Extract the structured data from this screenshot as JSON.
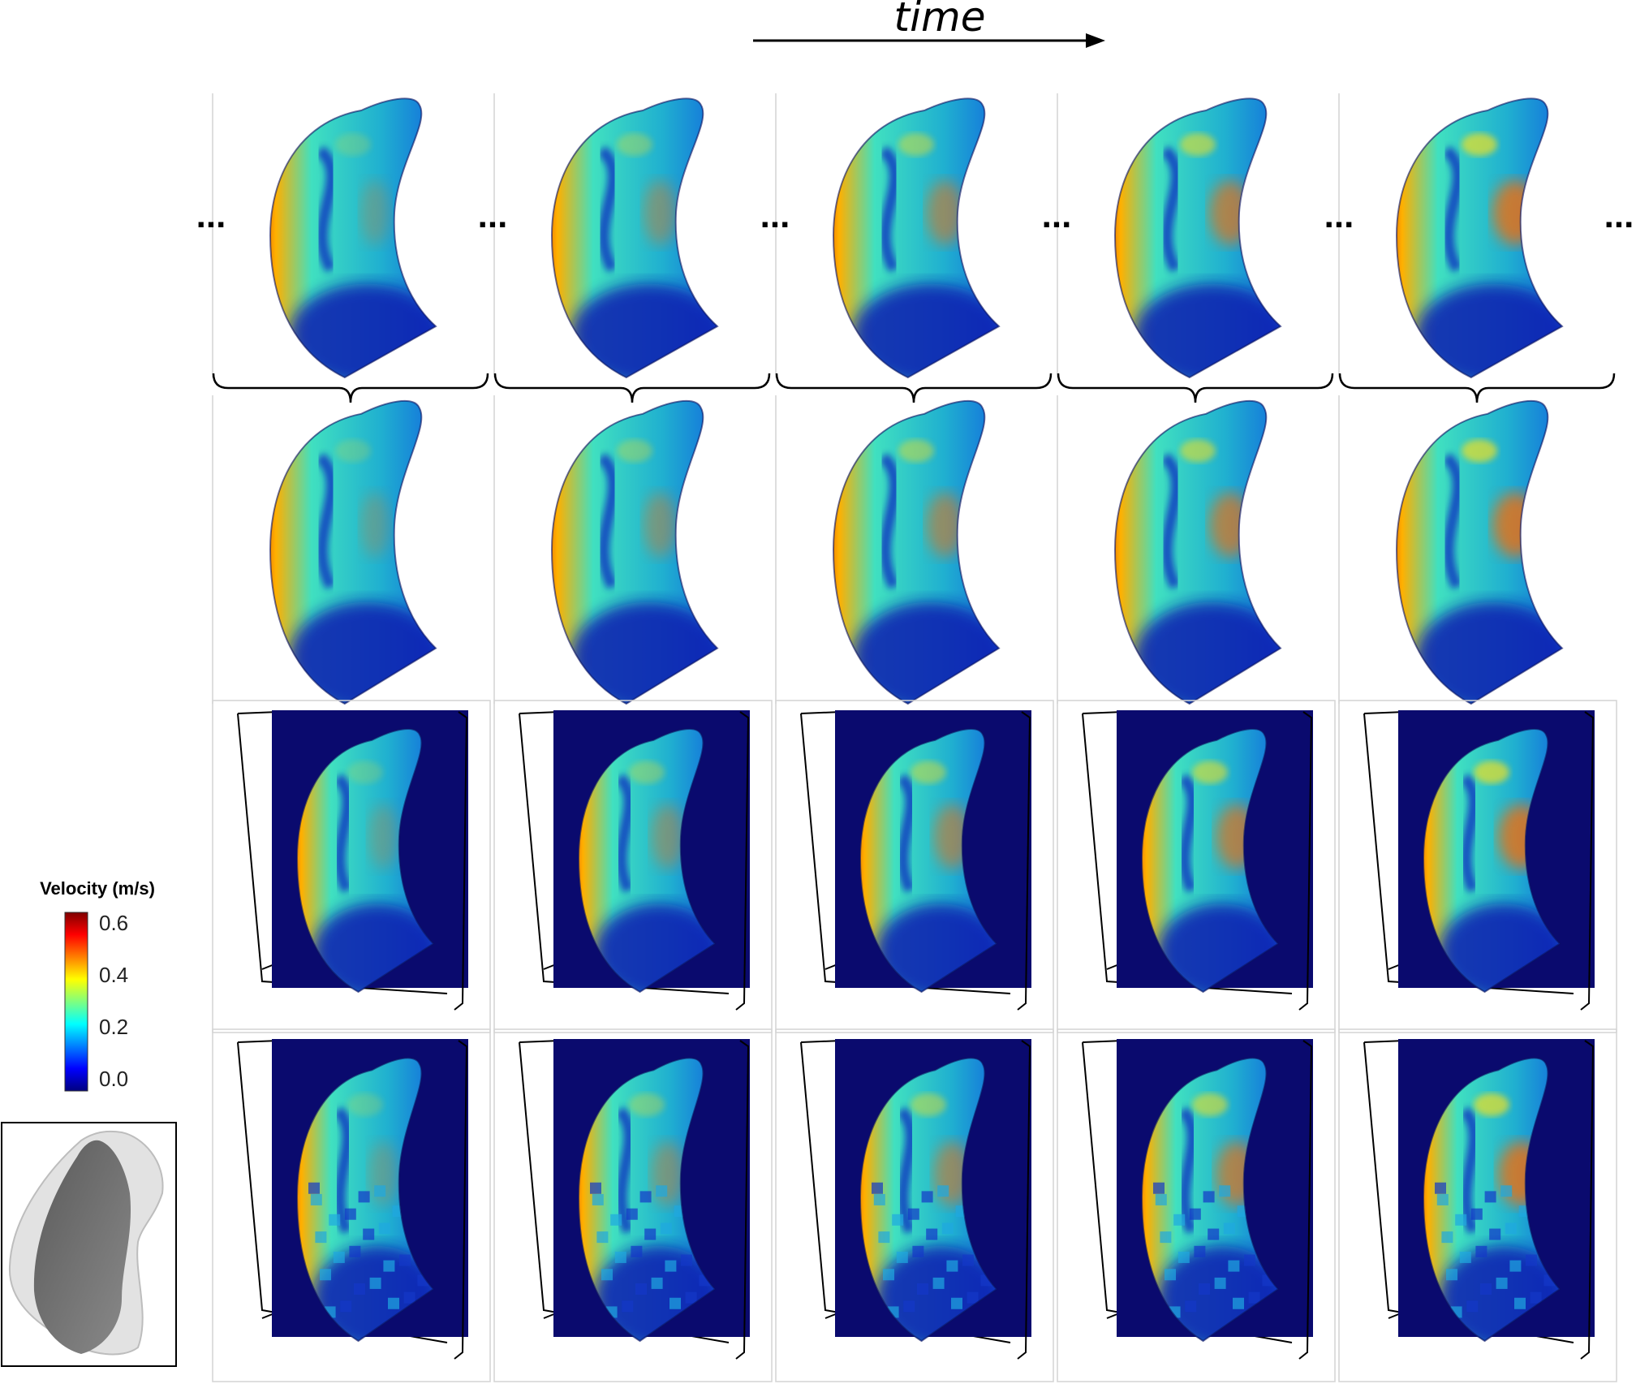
{
  "header": {
    "time_label": "time"
  },
  "colorbar": {
    "title": "Velocity (m/s)",
    "ticks": [
      "0.6",
      "0.4",
      "0.2",
      "0.0"
    ],
    "colors": [
      "#00007f",
      "#0000ff",
      "#007fff",
      "#00ffff",
      "#7fff7f",
      "#ffff00",
      "#ff7f00",
      "#ff0000",
      "#7f0000"
    ]
  },
  "grid": {
    "rows": 4,
    "columns": 5
  },
  "ellipsis": "...",
  "colors": {
    "background_blue": "#0a0a6e",
    "inset_gray": "#6e6e6e"
  }
}
